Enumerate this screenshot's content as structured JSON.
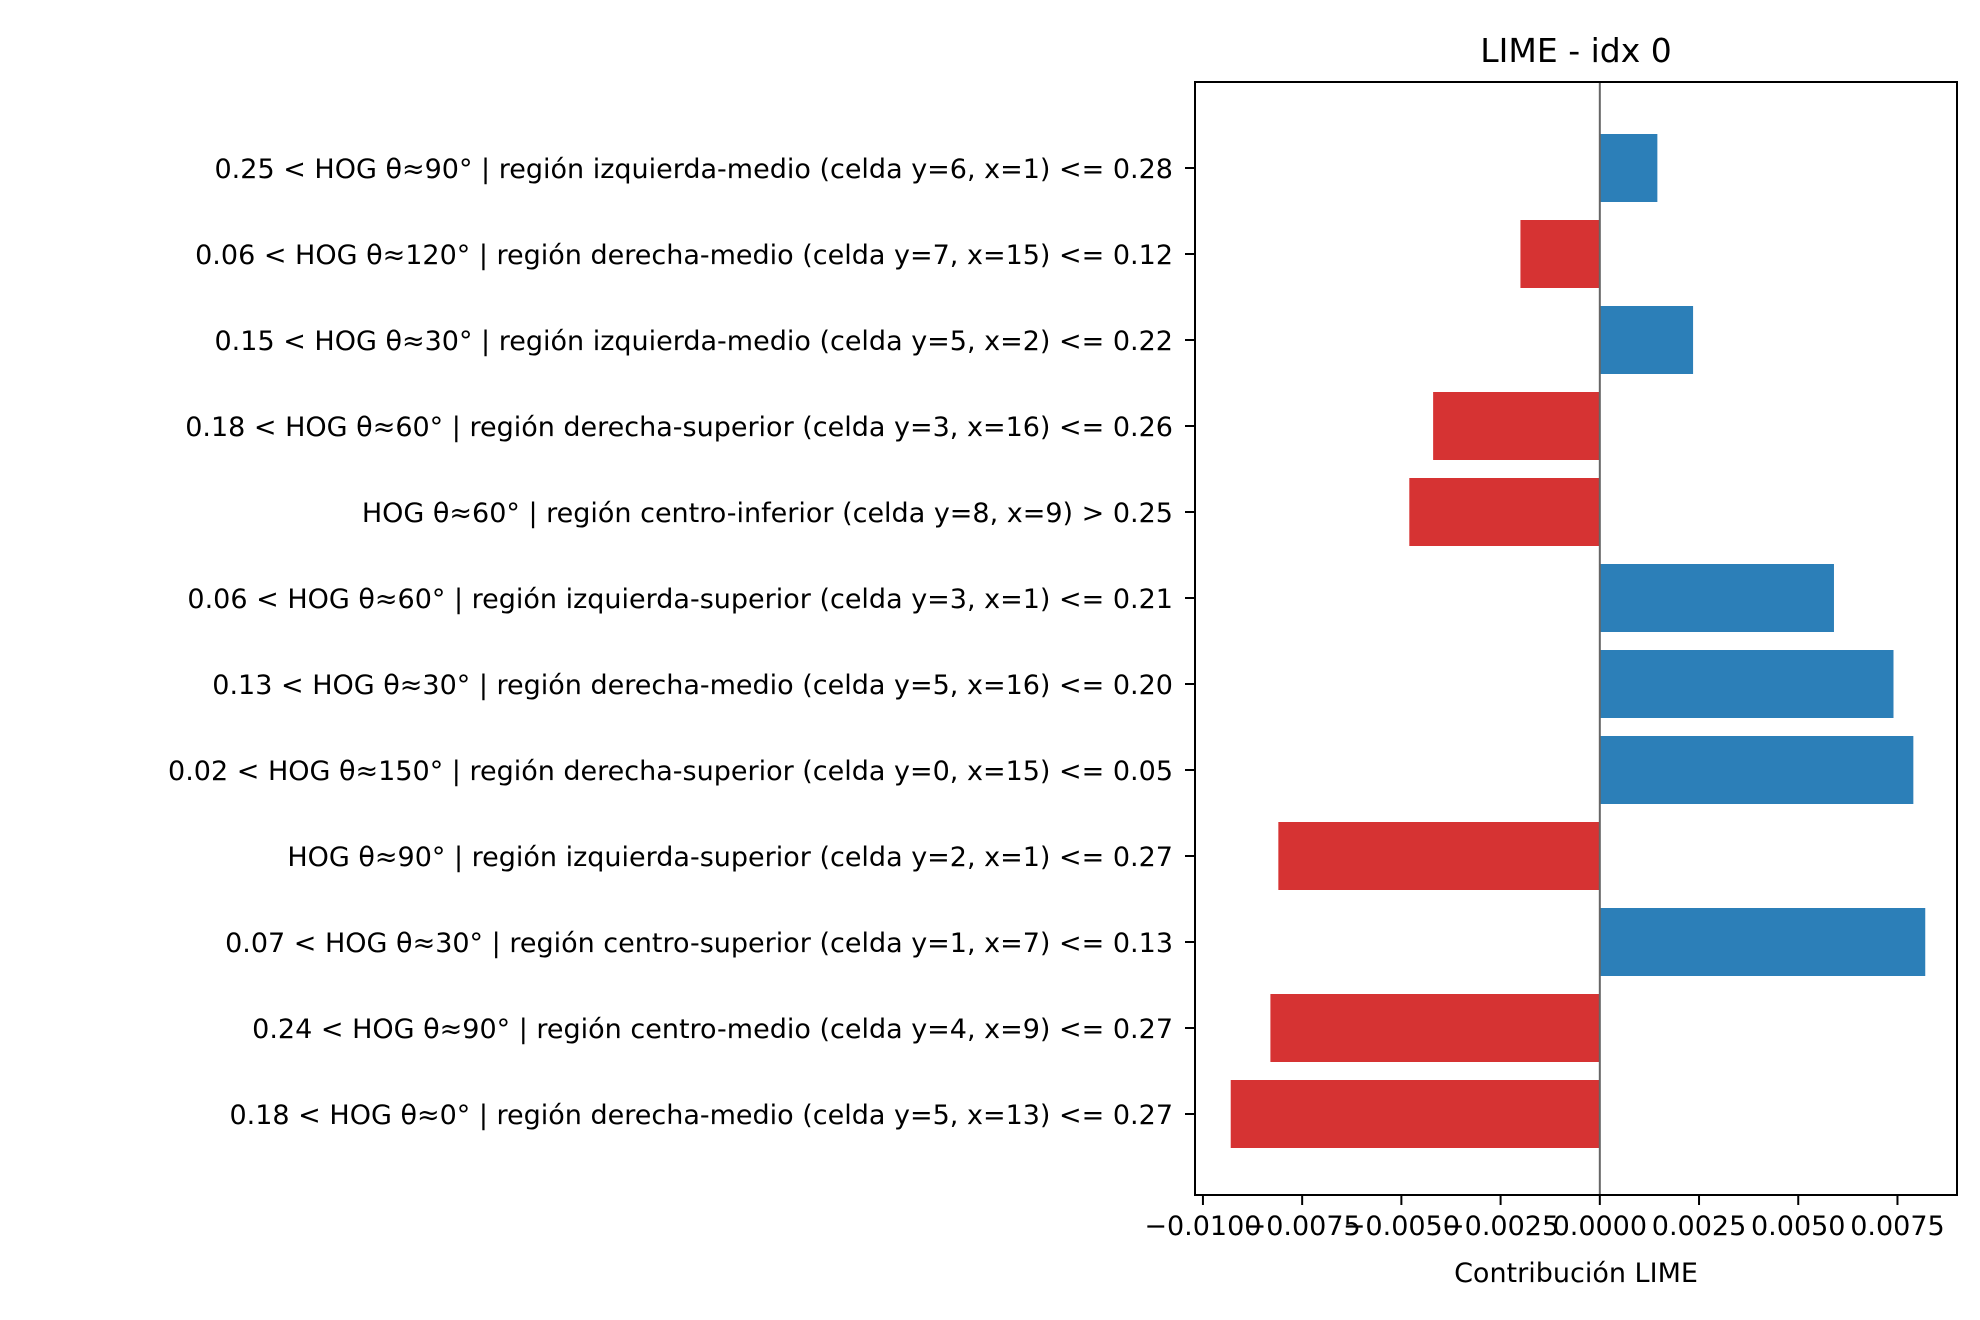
{
  "chart_data": {
    "type": "bar",
    "orientation": "horizontal",
    "title": "LIME - idx 0",
    "xlabel": "Contribución LIME",
    "ylabel": "",
    "xlim": [
      -0.0102,
      0.009
    ],
    "xticks": [
      -0.01,
      -0.0075,
      -0.005,
      -0.0025,
      0.0,
      0.0025,
      0.005,
      0.0075
    ],
    "xtick_labels": [
      "−0.0100",
      "−0.0075",
      "−0.0050",
      "−0.0025",
      "0.0000",
      "0.0025",
      "0.0050",
      "0.0075"
    ],
    "zero_line": true,
    "grid": false,
    "legend": "none",
    "categories": [
      "0.25 < HOG θ≈90° | región izquierda-medio (celda y=6, x=1) <= 0.28",
      "0.06 < HOG θ≈120° | región derecha-medio (celda y=7, x=15) <= 0.12",
      "0.15 < HOG θ≈30° | región izquierda-medio (celda y=5, x=2) <= 0.22",
      "0.18 < HOG θ≈60° | región derecha-superior (celda y=3, x=16) <= 0.26",
      "HOG θ≈60° | región centro-inferior (celda y=8, x=9) > 0.25",
      "0.06 < HOG θ≈60° | región izquierda-superior (celda y=3, x=1) <= 0.21",
      "0.13 < HOG θ≈30° | región derecha-medio (celda y=5, x=16) <= 0.20",
      "0.02 < HOG θ≈150° | región derecha-superior (celda y=0, x=15) <= 0.05",
      "HOG θ≈90° | región izquierda-superior (celda y=2, x=1) <= 0.27",
      "0.07 < HOG θ≈30° | región centro-superior (celda y=1, x=7) <= 0.13",
      "0.24 < HOG θ≈90° | región centro-medio (celda y=4, x=9) <= 0.27",
      "0.18 < HOG θ≈0° | región derecha-medio (celda y=5, x=13) <= 0.27"
    ],
    "values": [
      0.00145,
      -0.002,
      0.00235,
      -0.0042,
      -0.0048,
      0.0059,
      0.0074,
      0.0079,
      -0.0081,
      0.0082,
      -0.0083,
      -0.0093
    ],
    "colors": {
      "positive": "#2c7fb8",
      "negative": "#d63333",
      "zero_line": "#666666"
    }
  }
}
